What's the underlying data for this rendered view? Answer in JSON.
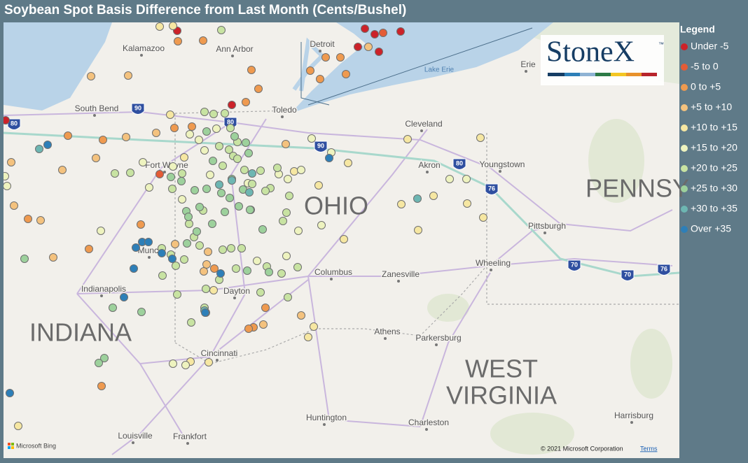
{
  "title": "Soybean Spot Basis Difference from Last Month (Cents/Bushel)",
  "legend": {
    "title": "Legend",
    "items": [
      {
        "label": "Under -5",
        "color": "#cc2229"
      },
      {
        "label": "-5 to 0",
        "color": "#e45c36"
      },
      {
        "label": "0 to +5",
        "color": "#ef9a4f"
      },
      {
        "label": "+5 to +10",
        "color": "#f4c27e"
      },
      {
        "label": "+10 to +15",
        "color": "#f6e7a2"
      },
      {
        "label": "+15 to +20",
        "color": "#eef3bf"
      },
      {
        "label": "+20 to +25",
        "color": "#c8e3a2"
      },
      {
        "label": "+25 to +30",
        "color": "#9dd19c"
      },
      {
        "label": "+30 to +35",
        "color": "#6db6b2"
      },
      {
        "label": "Over +35",
        "color": "#2d7fb8"
      }
    ]
  },
  "logo": {
    "name": "StoneX",
    "mark": "™"
  },
  "map": {
    "places": [
      "Kalamazoo",
      "Ann Arbor",
      "Detroit",
      "South Bend",
      "Toledo",
      "Erie",
      "Cleveland",
      "Fort Wayne",
      "Akron",
      "Youngstown",
      "Pittsburgh",
      "Muncie",
      "Columbus",
      "Zanesville",
      "Wheeling",
      "Indianapolis",
      "Dayton",
      "Athens",
      "Parkersburg",
      "Cincinnati",
      "Huntington",
      "Charleston",
      "Harrisburg",
      "Louisville",
      "Frankfort"
    ],
    "water": [
      "Lake Erie"
    ],
    "states": [
      "INDIANA",
      "OHIO",
      "WEST",
      "VIRGINIA",
      "PENNSY"
    ],
    "highways": [
      "90",
      "80",
      "80",
      "90",
      "80",
      "76",
      "70",
      "70",
      "76"
    ]
  },
  "footer": {
    "attribution": "Microsoft Bing",
    "copyright": "© 2021 Microsoft Corporation",
    "terms": "Terms"
  }
}
